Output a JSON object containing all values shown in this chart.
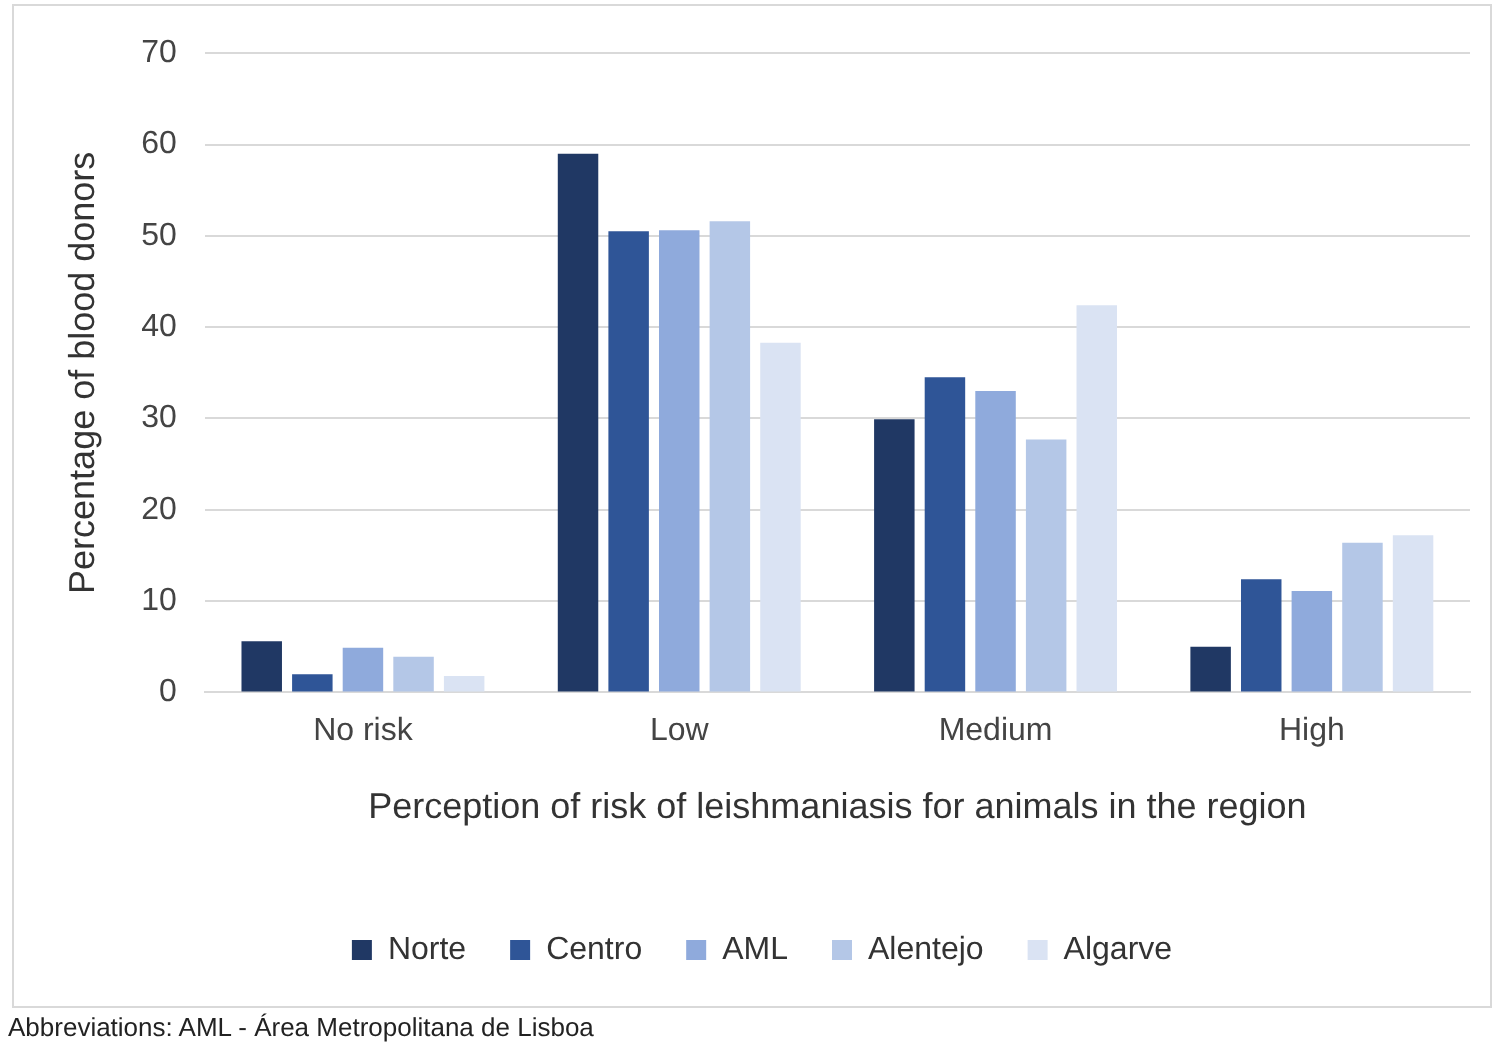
{
  "chart_data": {
    "type": "bar",
    "xlabel": "Perception of risk of leishmaniasis for animals in the region",
    "ylabel": "Percentage of blood donors",
    "categories": [
      "No risk",
      "Low",
      "Medium",
      "High"
    ],
    "series": [
      {
        "name": "Norte",
        "color": "#203864",
        "values": [
          5.6,
          59.0,
          29.9,
          5.0
        ]
      },
      {
        "name": "Centro",
        "color": "#2f5597",
        "values": [
          2.0,
          50.5,
          34.5,
          12.4
        ]
      },
      {
        "name": "AML",
        "color": "#8faadc",
        "values": [
          4.9,
          50.6,
          33.0,
          11.1
        ]
      },
      {
        "name": "Alentejo",
        "color": "#b4c7e7",
        "values": [
          3.9,
          51.6,
          27.7,
          16.4
        ]
      },
      {
        "name": "Algarve",
        "color": "#dae3f3",
        "values": [
          1.8,
          38.3,
          42.4,
          17.2
        ]
      }
    ],
    "ylim": [
      0,
      70
    ],
    "yticks": [
      0,
      10,
      20,
      30,
      40,
      50,
      60,
      70
    ],
    "grid": "y",
    "legend": "bottom",
    "annotations": [
      "Abbreviations: AML - Área Metropolitana de Lisboa"
    ]
  }
}
